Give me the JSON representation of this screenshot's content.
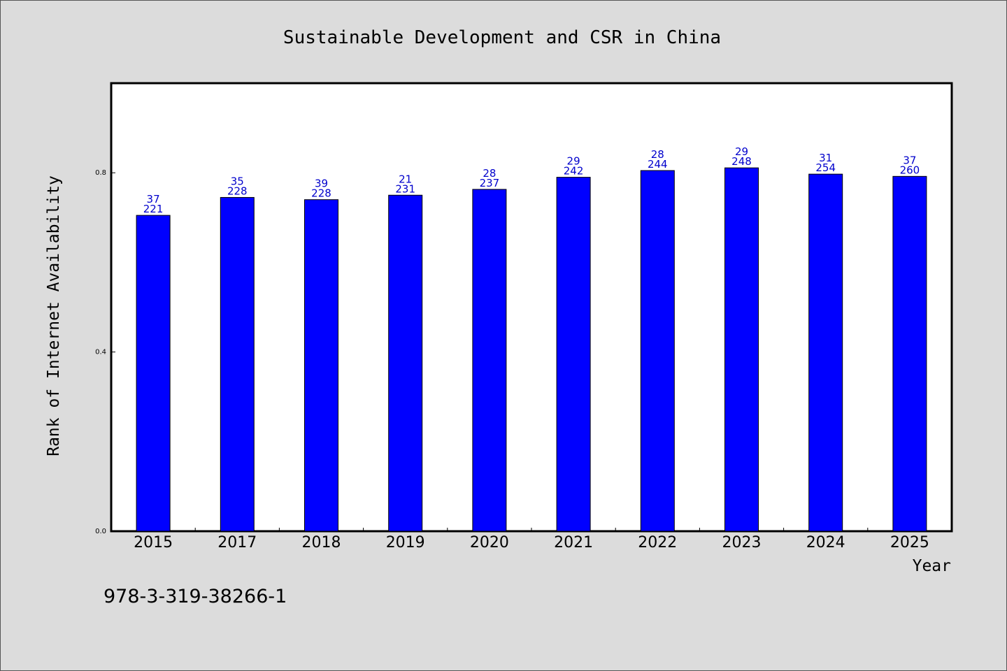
{
  "chart_data": {
    "type": "bar",
    "title": "Sustainable Development and CSR in China",
    "xlabel": "Year",
    "ylabel": "Rank of Internet Availability",
    "categories": [
      "2015",
      "2017",
      "2018",
      "2019",
      "2020",
      "2021",
      "2022",
      "2023",
      "2024",
      "2025"
    ],
    "values": [
      0.705,
      0.745,
      0.74,
      0.75,
      0.763,
      0.79,
      0.805,
      0.811,
      0.797,
      0.792
    ],
    "labels_top": [
      "37",
      "35",
      "39",
      "21",
      "28",
      "29",
      "28",
      "29",
      "31",
      "37"
    ],
    "labels_bottom": [
      "221",
      "228",
      "228",
      "231",
      "237",
      "242",
      "244",
      "248",
      "254",
      "260"
    ],
    "ylim": [
      0,
      1.0
    ],
    "yticks": [
      0.0,
      0.4,
      0.8
    ],
    "ytick_labels": [
      "0.0",
      "0.4",
      "0.8"
    ],
    "bar_color": "#0000ff",
    "label_color": "#0000cc",
    "grid": false
  },
  "footnote": "978-3-319-38266-1"
}
